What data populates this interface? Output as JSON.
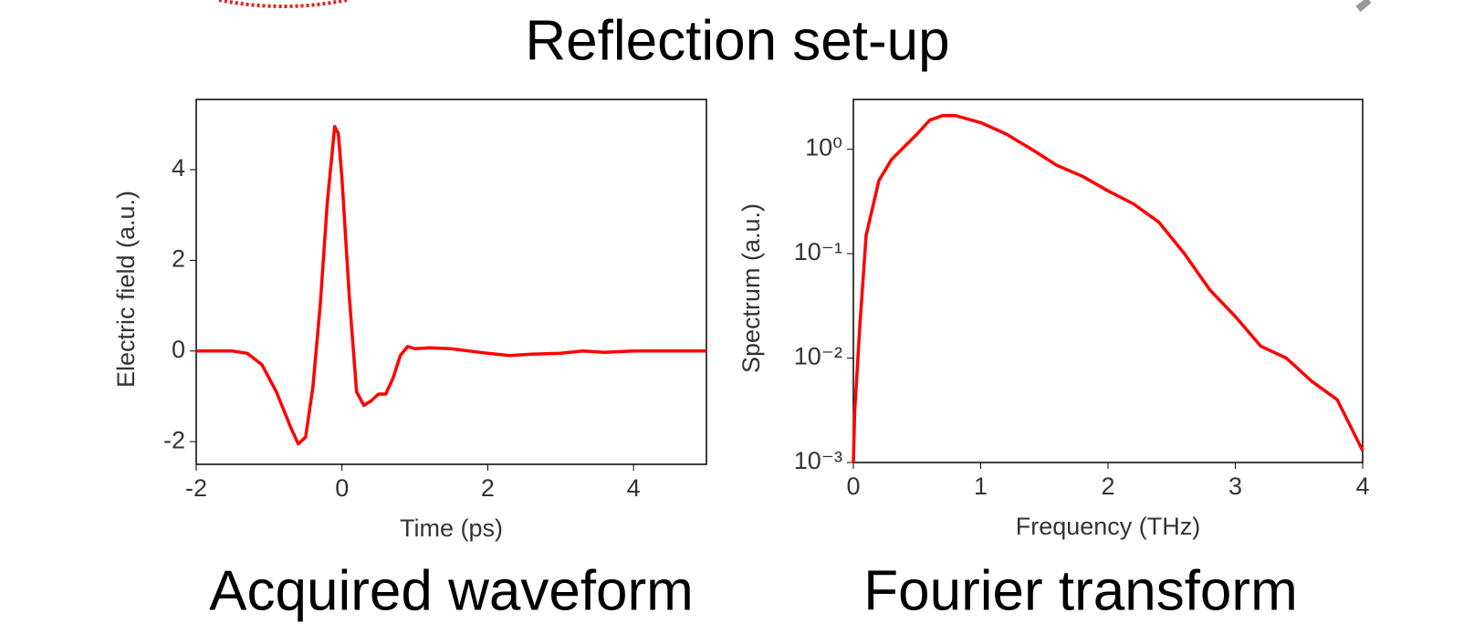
{
  "title": "Reflection set-up",
  "chart_data": [
    {
      "type": "line",
      "caption": "Acquired waveform",
      "xlabel": "Time (ps)",
      "ylabel": "Electric field (a.u.)",
      "xlim": [
        -2,
        5
      ],
      "ylim": [
        -2.5,
        5.55
      ],
      "xticks": [
        -2,
        0,
        2,
        4
      ],
      "yticks": [
        -2,
        0,
        2,
        4
      ],
      "log_y": false,
      "series": [
        {
          "color": "#ff0000",
          "x": [
            -2,
            -1.5,
            -1.3,
            -1.1,
            -0.9,
            -0.7,
            -0.6,
            -0.5,
            -0.4,
            -0.3,
            -0.2,
            -0.1,
            -0.05,
            0,
            0.1,
            0.2,
            0.3,
            0.4,
            0.5,
            0.6,
            0.7,
            0.8,
            0.9,
            1.0,
            1.2,
            1.5,
            2.0,
            2.3,
            2.6,
            3.0,
            3.3,
            3.6,
            4.0,
            5.0
          ],
          "values": [
            0,
            0,
            -0.05,
            -0.3,
            -0.9,
            -1.7,
            -2.05,
            -1.9,
            -0.8,
            1.0,
            3.3,
            4.95,
            4.8,
            3.8,
            1.2,
            -0.9,
            -1.2,
            -1.1,
            -0.95,
            -0.95,
            -0.6,
            -0.1,
            0.1,
            0.05,
            0.07,
            0.05,
            -0.05,
            -0.1,
            -0.07,
            -0.05,
            0,
            -0.03,
            0,
            0
          ]
        }
      ]
    },
    {
      "type": "line",
      "caption": "Fourier transform",
      "xlabel": "Frequency (THz)",
      "ylabel": "Spectrum (a.u.)",
      "xlim": [
        0,
        4
      ],
      "ylim": [
        0.001,
        3
      ],
      "xticks": [
        0,
        1,
        2,
        3,
        4
      ],
      "yticks": [
        {
          "value": 0.001,
          "label": "10⁻³"
        },
        {
          "value": 0.01,
          "label": "10⁻²"
        },
        {
          "value": 0.1,
          "label": "10⁻¹"
        },
        {
          "value": 1,
          "label": "10⁰"
        }
      ],
      "log_y": true,
      "series": [
        {
          "color": "#ff0000",
          "x": [
            0,
            0.01,
            0.05,
            0.1,
            0.2,
            0.3,
            0.5,
            0.6,
            0.7,
            0.8,
            1.0,
            1.2,
            1.4,
            1.6,
            1.8,
            2.0,
            2.2,
            2.4,
            2.6,
            2.8,
            3.0,
            3.2,
            3.4,
            3.6,
            3.8,
            4.0
          ],
          "values": [
            0.001,
            0.003,
            0.02,
            0.15,
            0.5,
            0.8,
            1.4,
            1.9,
            2.1,
            2.1,
            1.8,
            1.4,
            1.0,
            0.7,
            0.55,
            0.4,
            0.3,
            0.2,
            0.1,
            0.045,
            0.025,
            0.013,
            0.01,
            0.006,
            0.004,
            0.0013
          ]
        }
      ]
    }
  ]
}
